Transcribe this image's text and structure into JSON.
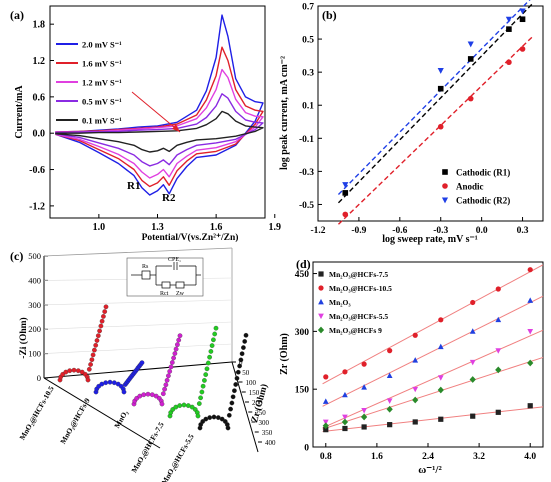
{
  "chart_data": [
    {
      "panel": "(a)",
      "type": "line",
      "xlabel": "Potential/V(vs.Zn²⁺/Zn)",
      "ylabel": "Current/mA",
      "xlim": [
        0.75,
        1.85
      ],
      "ylim": [
        -1.4,
        2.1
      ],
      "xticks": [
        "1.0",
        "1.3",
        "1.6",
        "1.9"
      ],
      "yticks": [
        "1.8",
        "1.2",
        "0.6",
        "0.0",
        "-0.6",
        "-1.2"
      ],
      "peak_labels": [
        "R1",
        "R2"
      ],
      "series": [
        {
          "name": "2.0 mV S⁻¹",
          "color": "#1f1fe6",
          "x": [
            0.78,
            0.9,
            1.0,
            1.1,
            1.2,
            1.3,
            1.4,
            1.5,
            1.55,
            1.6,
            1.63,
            1.66,
            1.7,
            1.75,
            1.8,
            1.84,
            1.8,
            1.7,
            1.6,
            1.5,
            1.45,
            1.4,
            1.36,
            1.33,
            1.3,
            1.26,
            1.22,
            1.18,
            1.1,
            1.0,
            0.9,
            0.78
          ],
          "y": [
            0.02,
            0.03,
            0.05,
            0.07,
            0.1,
            0.12,
            0.18,
            0.38,
            0.7,
            1.25,
            1.95,
            1.6,
            0.9,
            0.6,
            0.52,
            0.5,
            0.2,
            -0.2,
            -0.36,
            -0.4,
            -0.55,
            -0.75,
            -1.0,
            -0.85,
            -0.95,
            -1.02,
            -0.9,
            -0.7,
            -0.5,
            -0.32,
            -0.15,
            -0.02
          ]
        },
        {
          "name": "1.6 mV S⁻¹",
          "color": "#e0202a",
          "x": [
            0.78,
            0.9,
            1.0,
            1.1,
            1.2,
            1.3,
            1.4,
            1.5,
            1.55,
            1.6,
            1.63,
            1.66,
            1.7,
            1.75,
            1.8,
            1.84,
            1.8,
            1.7,
            1.6,
            1.5,
            1.45,
            1.4,
            1.36,
            1.33,
            1.3,
            1.26,
            1.22,
            1.18,
            1.1,
            1.0,
            0.9,
            0.78
          ],
          "y": [
            0.02,
            0.03,
            0.04,
            0.06,
            0.08,
            0.1,
            0.15,
            0.3,
            0.55,
            0.95,
            1.42,
            1.2,
            0.72,
            0.45,
            0.38,
            0.36,
            0.15,
            -0.18,
            -0.3,
            -0.34,
            -0.46,
            -0.62,
            -0.86,
            -0.72,
            -0.82,
            -0.88,
            -0.78,
            -0.6,
            -0.42,
            -0.27,
            -0.12,
            -0.02
          ]
        },
        {
          "name": "1.2 mV S⁻¹",
          "color": "#e040e0",
          "x": [
            0.78,
            0.9,
            1.0,
            1.1,
            1.2,
            1.3,
            1.4,
            1.5,
            1.55,
            1.6,
            1.63,
            1.66,
            1.7,
            1.75,
            1.8,
            1.84,
            1.8,
            1.7,
            1.6,
            1.5,
            1.45,
            1.4,
            1.36,
            1.33,
            1.3,
            1.26,
            1.22,
            1.18,
            1.1,
            1.0,
            0.9,
            0.78
          ],
          "y": [
            0.02,
            0.02,
            0.03,
            0.05,
            0.07,
            0.09,
            0.12,
            0.24,
            0.42,
            0.72,
            1.05,
            0.92,
            0.56,
            0.34,
            0.28,
            0.27,
            0.1,
            -0.14,
            -0.24,
            -0.28,
            -0.38,
            -0.5,
            -0.72,
            -0.6,
            -0.68,
            -0.74,
            -0.64,
            -0.5,
            -0.35,
            -0.22,
            -0.1,
            -0.02
          ]
        },
        {
          "name": "0.5 mV S⁻¹",
          "color": "#8a2be2",
          "x": [
            0.78,
            0.9,
            1.0,
            1.1,
            1.2,
            1.3,
            1.4,
            1.5,
            1.55,
            1.6,
            1.63,
            1.66,
            1.7,
            1.75,
            1.8,
            1.84,
            1.8,
            1.7,
            1.6,
            1.5,
            1.45,
            1.4,
            1.36,
            1.33,
            1.3,
            1.26,
            1.22,
            1.18,
            1.1,
            1.0,
            0.9,
            0.78
          ],
          "y": [
            0.01,
            0.02,
            0.02,
            0.03,
            0.05,
            0.06,
            0.08,
            0.15,
            0.26,
            0.45,
            0.65,
            0.58,
            0.36,
            0.22,
            0.18,
            0.17,
            0.06,
            -0.1,
            -0.16,
            -0.2,
            -0.27,
            -0.36,
            -0.52,
            -0.44,
            -0.5,
            -0.54,
            -0.47,
            -0.36,
            -0.25,
            -0.16,
            -0.07,
            -0.01
          ]
        },
        {
          "name": "0.1 mV S⁻¹",
          "color": "#222222",
          "x": [
            0.78,
            0.9,
            1.0,
            1.1,
            1.2,
            1.3,
            1.4,
            1.5,
            1.55,
            1.6,
            1.63,
            1.66,
            1.7,
            1.75,
            1.8,
            1.84,
            1.8,
            1.7,
            1.6,
            1.5,
            1.45,
            1.4,
            1.36,
            1.33,
            1.3,
            1.26,
            1.22,
            1.18,
            1.1,
            1.0,
            0.9,
            0.78
          ],
          "y": [
            0.0,
            0.0,
            0.01,
            0.01,
            0.02,
            0.03,
            0.04,
            0.08,
            0.14,
            0.24,
            0.36,
            0.32,
            0.2,
            0.12,
            0.1,
            0.09,
            0.03,
            -0.05,
            -0.09,
            -0.11,
            -0.15,
            -0.2,
            -0.3,
            -0.25,
            -0.29,
            -0.31,
            -0.27,
            -0.2,
            -0.14,
            -0.09,
            -0.04,
            -0.01
          ]
        }
      ]
    },
    {
      "panel": "(b)",
      "type": "scatter",
      "xlabel": "log sweep rate, mV s⁻¹",
      "ylabel": "log peak current, mA cm⁻²",
      "xlim": [
        -1.2,
        0.45
      ],
      "ylim": [
        -0.6,
        0.7
      ],
      "xticks": [
        "-1.2",
        "-0.9",
        "-0.6",
        "-0.3",
        "0.0",
        "0.3"
      ],
      "yticks": [
        "0.7",
        "0.5",
        "0.3",
        "0.1",
        "-0.1",
        "-0.3",
        "-0.5"
      ],
      "legend_position": "bottom-right",
      "series": [
        {
          "name": "Cathodic (R1)",
          "color": "#000000",
          "marker": "square",
          "x": [
            -1.0,
            -0.3,
            -0.08,
            0.2,
            0.3
          ],
          "y": [
            -0.43,
            0.2,
            0.38,
            0.56,
            0.62
          ],
          "fit": [
            [
              -1.05,
              -0.49
            ],
            [
              0.38,
              0.72
            ]
          ]
        },
        {
          "name": "Anodic",
          "color": "#e0202a",
          "marker": "circle",
          "x": [
            -1.0,
            -0.3,
            -0.08,
            0.2,
            0.3
          ],
          "y": [
            -0.56,
            -0.03,
            0.14,
            0.36,
            0.44
          ],
          "fit": [
            [
              -1.05,
              -0.62
            ],
            [
              0.38,
              0.52
            ]
          ]
        },
        {
          "name": "Cathodic (R2)",
          "color": "#1f3fe6",
          "marker": "triangle-down",
          "x": [
            -1.0,
            -0.3,
            -0.08,
            0.2,
            0.3
          ],
          "y": [
            -0.38,
            0.31,
            0.47,
            0.62,
            0.67
          ],
          "fit": [
            [
              -1.05,
              -0.44
            ],
            [
              0.38,
              0.76
            ]
          ]
        }
      ]
    },
    {
      "panel": "(c)",
      "type": "scatter",
      "ylabel": "-Zi (Ohm)",
      "depth_label": "Zr (Ohm)",
      "yticks": [
        "500",
        "400",
        "300",
        "200",
        "100",
        "0"
      ],
      "depth_ticks": [
        "0",
        "50",
        "100",
        "150",
        "200",
        "250",
        "300",
        "350",
        "400"
      ],
      "circuit_labels": [
        "Rs",
        "CPE₁",
        "Rct",
        "Zw"
      ],
      "series": [
        {
          "name": "MnO₂@HCFs-10.5",
          "color": "#e0202a",
          "peak_zi": 300,
          "arc_zi": 40
        },
        {
          "name": "MnO₂@HCFs-9",
          "color": "#1f1fe6",
          "peak_zi": 120,
          "arc_zi": 40
        },
        {
          "name": "MnO₂",
          "color": "#d020d0",
          "peak_zi": 280,
          "arc_zi": 40
        },
        {
          "name": "MnO₂@HCFs-7.5",
          "color": "#22cc22",
          "peak_zi": 360,
          "arc_zi": 45
        },
        {
          "name": "MnO₂@HCFs-5.5",
          "color": "#111111",
          "peak_zi": 380,
          "arc_zi": 45
        }
      ]
    },
    {
      "panel": "(d)",
      "type": "scatter",
      "xlabel": "ω⁻¹/²",
      "ylabel": "Zr (Ohm)",
      "xlim": [
        0.6,
        4.2
      ],
      "ylim": [
        0,
        480
      ],
      "xticks": [
        "0.8",
        "1.6",
        "2.4",
        "3.2",
        "4.0"
      ],
      "yticks": [
        "450",
        "300",
        "150",
        "0"
      ],
      "legend_position": "top-left",
      "x": [
        0.8,
        1.1,
        1.4,
        1.8,
        2.2,
        2.6,
        3.1,
        3.5,
        4.0
      ],
      "series": [
        {
          "name": "Mn₂O₃@HCFs-7.5",
          "color": "#222222",
          "marker": "square",
          "y": [
            45,
            48,
            52,
            58,
            65,
            72,
            80,
            90,
            107
          ]
        },
        {
          "name": "Mn₂O₃@HCFs-10.5",
          "color": "#e0202a",
          "marker": "circle",
          "y": [
            182,
            195,
            215,
            250,
            290,
            330,
            375,
            410,
            460
          ]
        },
        {
          "name": "Mn₂O₃",
          "color": "#2040e0",
          "marker": "triangle-up",
          "y": [
            118,
            135,
            155,
            185,
            225,
            260,
            300,
            330,
            380
          ]
        },
        {
          "name": "Mn₂O₃@HCFs-5.5",
          "color": "#e040e0",
          "marker": "triangle-down",
          "y": [
            65,
            78,
            95,
            120,
            150,
            180,
            220,
            250,
            300
          ]
        },
        {
          "name": "Mn₂O₃@HCFs 9",
          "color": "#2a8a2a",
          "marker": "diamond",
          "y": [
            55,
            65,
            78,
            98,
            122,
            148,
            175,
            200,
            218
          ]
        }
      ]
    }
  ]
}
